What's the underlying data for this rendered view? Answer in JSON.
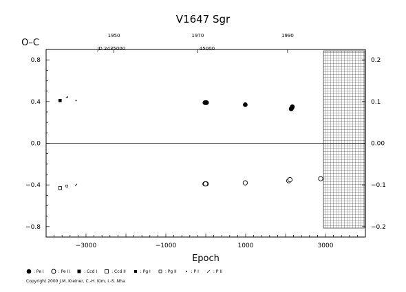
{
  "chart_data": {
    "type": "scatter",
    "title": "V1647  Sgr",
    "ylabel": "O–C",
    "xlabel": "Epoch",
    "xlim": [
      -4000,
      4000
    ],
    "ylim": [
      -0.9,
      0.9
    ],
    "x_ticks": [
      -3000,
      -1000,
      1000,
      3000
    ],
    "x_tick_labels": [
      "−3000",
      "−1000",
      "1000",
      "3000"
    ],
    "y_ticks": [
      -0.8,
      -0.4,
      0.0,
      0.4,
      0.8
    ],
    "y_tick_labels": [
      "−0.8",
      "−0.4",
      "0.0",
      "0.4",
      "0.8"
    ],
    "right_ticks": [
      -0.2,
      -0.1,
      0.0,
      0.1,
      0.2
    ],
    "right_tick_labels": [
      "−0.2",
      "−0.1",
      "0.00",
      "0.1",
      "0.2"
    ],
    "top_year_labels": [
      "1950",
      "1970",
      "1990"
    ],
    "top_year_epochs": [
      -2300,
      -200,
      2050
    ],
    "jd_labels": [
      "JD  2435000",
      "45000"
    ],
    "jd_epochs": [
      -2400,
      0
    ],
    "zero_line": 0.0,
    "hatched_region_from_epoch": 2950,
    "series": [
      {
        "name": "Pe I",
        "marker": "filled-circle",
        "points": [
          [
            -20,
            0.39
          ],
          [
            0,
            0.39
          ],
          [
            20,
            0.39
          ],
          [
            990,
            0.37
          ],
          [
            2160,
            0.34
          ],
          [
            2140,
            0.33
          ],
          [
            2170,
            0.35
          ]
        ]
      },
      {
        "name": "Pe II",
        "marker": "open-circle",
        "points": [
          [
            -20,
            -0.39
          ],
          [
            10,
            -0.39
          ],
          [
            -5,
            -0.39
          ],
          [
            990,
            -0.38
          ],
          [
            2080,
            -0.36
          ],
          [
            2110,
            -0.35
          ],
          [
            2880,
            -0.34
          ]
        ]
      },
      {
        "name": "Ccd I",
        "marker": "filled-square",
        "points": [
          [
            -3650,
            0.41
          ]
        ]
      },
      {
        "name": "Ccd II",
        "marker": "open-square",
        "points": [
          [
            -3650,
            -0.43
          ]
        ]
      },
      {
        "name": "Pg I",
        "marker": "small-filled",
        "points": [
          [
            -3480,
            0.44
          ]
        ]
      },
      {
        "name": "Pg II",
        "marker": "small-open",
        "points": [
          [
            -3480,
            -0.41
          ]
        ]
      },
      {
        "name": "P I",
        "marker": "dot",
        "points": [
          [
            -3250,
            0.41
          ]
        ]
      },
      {
        "name": "P II",
        "marker": "tick",
        "points": [
          [
            -3250,
            -0.4
          ]
        ]
      }
    ]
  },
  "legend": [
    {
      "symbol": "filled-circle",
      "label": ": Pe I"
    },
    {
      "symbol": "open-circle",
      "label": ": Pe II"
    },
    {
      "symbol": "filled-square",
      "label": ": Ccd I"
    },
    {
      "symbol": "open-square",
      "label": ": Ccd II"
    },
    {
      "symbol": "small-filled",
      "label": ": Pg I"
    },
    {
      "symbol": "small-open",
      "label": ": Pg II"
    },
    {
      "symbol": "dot",
      "label": ": P I"
    },
    {
      "symbol": "tick",
      "label": ": P II"
    }
  ],
  "copyright": "Copyright 2000 J.M. Kreiner, C.-H. Kim, I.-S. Nha"
}
